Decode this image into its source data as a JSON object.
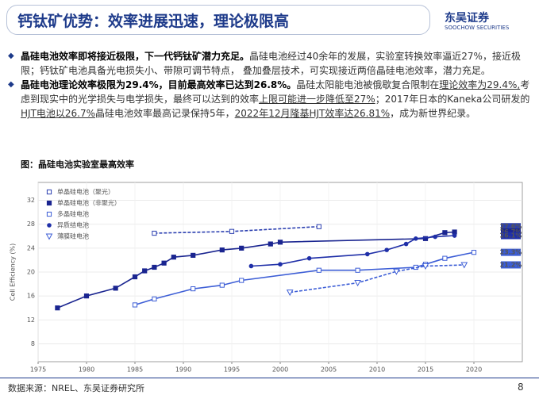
{
  "header": {
    "title": "钙钛矿优势：效率进展迅速，理论极限高",
    "logo": "东吴证券",
    "logo_en": "SOOCHOW SECURITIES"
  },
  "bullets": [
    [
      {
        "text": "晶硅电池效率即将接近极限，下一代钙钛矿潜力充足。",
        "bold": true
      },
      {
        "text": "晶硅电池经过40余年的发展，实验室转换效率逼近27%，接近极限；钙钛矿电池具备光电损失小、带隙可调节特点， 叠加叠层技术，可实现接近两倍晶硅电池效率，潜力充足。"
      }
    ],
    [
      {
        "text": "晶硅电池理论效率极限为29.4%，目前最高效率已达到26.8%。",
        "bold": true
      },
      {
        "text": "晶硅太阳能电池被俄歇复合限制在"
      },
      {
        "text": "理论效率为29.4%,",
        "underline": true
      },
      {
        "text": "考虑到现实中的光学损失与电学损失，最终可以达到的效率"
      },
      {
        "text": "上限可能进一步降低至27%",
        "underline": true
      },
      {
        "text": "；2017年日本的Kaneka公司研发的"
      },
      {
        "text": "HJT电池以26.7%",
        "underline": true
      },
      {
        "text": "晶硅电池效率最高记录保持5年，"
      },
      {
        "text": "2022年12月隆基HJT效率达26.81%",
        "underline": true
      },
      {
        "text": "，成为新世界纪录。"
      }
    ]
  ],
  "figure_caption": "图：晶硅电池实验室最高效率",
  "chart_data": {
    "type": "line",
    "y_label": "Cell Efficiency (%)",
    "xlim": [
      1975,
      2025
    ],
    "xticks": [
      1975,
      1980,
      1985,
      1990,
      1995,
      2000,
      2005,
      2010,
      2015,
      2020
    ],
    "ylim": [
      5,
      35
    ],
    "yticks": [
      8,
      12,
      16,
      20,
      24,
      28,
      32
    ],
    "grid": true,
    "series": [
      {
        "name": "单晶硅电池（聚光）",
        "color": "#2b3fb0",
        "marker": "square-open",
        "dashed": true,
        "x": [
          1987,
          1995,
          2004
        ],
        "values": [
          26.5,
          26.8,
          27.6
        ],
        "value_labels": [
          null,
          null,
          "27.6%"
        ]
      },
      {
        "name": "单晶硅电池（非聚光）",
        "color": "#1a2590",
        "marker": "square",
        "dashed": false,
        "x": [
          1977,
          1980,
          1983,
          1985,
          1986,
          1987,
          1988,
          1989,
          1991,
          1994,
          1996,
          1999,
          2000,
          2015,
          2017,
          2018
        ],
        "values": [
          14.0,
          16.0,
          17.3,
          19.2,
          20.2,
          20.8,
          21.5,
          22.5,
          22.8,
          23.7,
          24.0,
          24.7,
          25.0,
          25.6,
          26.6,
          26.7
        ],
        "value_labels": [
          null,
          null,
          null,
          null,
          null,
          null,
          null,
          null,
          null,
          null,
          null,
          null,
          null,
          null,
          null,
          "26.7%"
        ]
      },
      {
        "name": "多晶硅电池",
        "color": "#3d5ed6",
        "marker": "square-open",
        "dashed": false,
        "x": [
          1985,
          1987,
          1991,
          1994,
          1996,
          2004,
          2008,
          2014,
          2015,
          2017,
          2020
        ],
        "values": [
          14.5,
          15.5,
          17.2,
          17.8,
          18.6,
          20.3,
          20.3,
          20.8,
          21.3,
          22.3,
          23.3
        ],
        "value_labels": [
          null,
          null,
          null,
          null,
          null,
          null,
          null,
          null,
          null,
          null,
          "23.3%"
        ]
      },
      {
        "name": "异质结电池",
        "color": "#1f2fa8",
        "marker": "circle",
        "dashed": false,
        "x": [
          1997,
          2000,
          2003,
          2009,
          2011,
          2013,
          2014,
          2016,
          2018
        ],
        "values": [
          21.0,
          21.3,
          22.3,
          23.0,
          23.7,
          24.7,
          25.6,
          25.9,
          26.1
        ],
        "value_labels": [
          null,
          null,
          null,
          null,
          null,
          null,
          null,
          null,
          "26.1%"
        ]
      },
      {
        "name": "薄膜硅电池",
        "color": "#3d5ed6",
        "marker": "triangle-open",
        "dashed": true,
        "x": [
          2001,
          2008,
          2012,
          2015,
          2019
        ],
        "values": [
          16.6,
          18.2,
          20.1,
          21.0,
          21.2
        ],
        "value_labels": [
          null,
          null,
          null,
          null,
          "21.2%"
        ]
      }
    ]
  },
  "footer": {
    "source": "数据来源：NREL、东吴证券研究所",
    "page": "8"
  }
}
